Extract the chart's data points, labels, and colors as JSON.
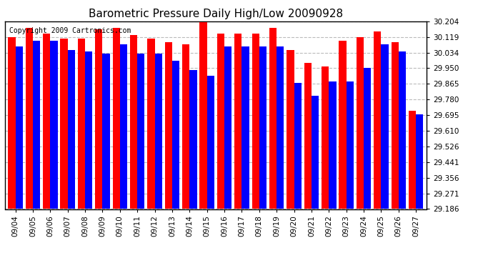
{
  "title": "Barometric Pressure Daily High/Low 20090928",
  "copyright": "Copyright 2009 Cartronics.com",
  "dates": [
    "09/04",
    "09/05",
    "09/06",
    "09/07",
    "09/08",
    "09/09",
    "09/10",
    "09/11",
    "09/12",
    "09/13",
    "09/14",
    "09/15",
    "09/16",
    "09/17",
    "09/18",
    "09/19",
    "09/20",
    "09/21",
    "09/22",
    "09/23",
    "09/24",
    "09/25",
    "09/26",
    "09/27"
  ],
  "highs": [
    30.12,
    30.17,
    30.14,
    30.11,
    30.11,
    30.16,
    30.17,
    30.13,
    30.11,
    30.09,
    30.08,
    30.2,
    30.14,
    30.14,
    30.14,
    30.17,
    30.05,
    29.98,
    29.96,
    30.1,
    30.12,
    30.15,
    30.09,
    29.72
  ],
  "lows": [
    30.07,
    30.1,
    30.1,
    30.05,
    30.04,
    30.03,
    30.08,
    30.03,
    30.03,
    29.99,
    29.94,
    29.91,
    30.07,
    30.07,
    30.07,
    30.07,
    29.87,
    29.8,
    29.88,
    29.88,
    29.95,
    30.08,
    30.04,
    29.7
  ],
  "ymin": 29.186,
  "ymax": 30.204,
  "yticks": [
    29.186,
    29.271,
    29.356,
    29.441,
    29.526,
    29.61,
    29.695,
    29.78,
    29.865,
    29.95,
    30.034,
    30.119,
    30.204
  ],
  "high_color": "#ff0000",
  "low_color": "#0000ff",
  "bg_color": "#ffffff",
  "plot_bg_color": "#ffffff",
  "grid_color": "#bbbbbb",
  "bar_width": 0.42,
  "title_fontsize": 11,
  "tick_fontsize": 7.5,
  "copyright_fontsize": 7
}
